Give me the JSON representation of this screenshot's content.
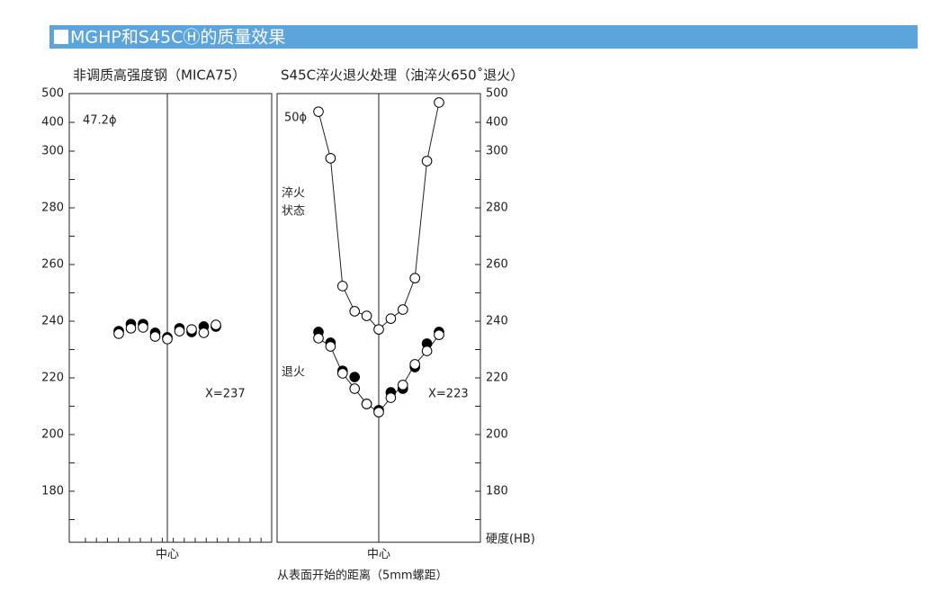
{
  "header": {
    "title": "MGHP和S45CⒽ的质量效果"
  },
  "x_label": "从表面开始的距离（5mm螺距）",
  "chart_data": [
    {
      "type": "line",
      "title": "非调质高强度钢（MICA75）",
      "categories": [
        null,
        null,
        null,
        null,
        "中心",
        null,
        null,
        null,
        null
      ],
      "series": [
        {
          "color": "#000000",
          "line": false,
          "values": [
            236.5,
            239,
            239,
            235.9,
            234.3,
            237.5,
            236.2,
            238.1,
            238.1
          ]
        },
        {
          "color": "#ffffff",
          "line": false,
          "values": [
            235.6,
            237.5,
            237.8,
            234.6,
            233.7,
            236.5,
            237.1,
            235.9,
            238.7
          ]
        }
      ],
      "ylim": [
        162,
        500
      ],
      "yticks": [
        500,
        400,
        300,
        280,
        260,
        240,
        220,
        200,
        180
      ],
      "minor_yticks": [
        290,
        270,
        250,
        230,
        210,
        190,
        170
      ],
      "y_axis_side": "left",
      "annotations": [
        "47.2ϕ",
        "X=237"
      ]
    },
    {
      "type": "line",
      "title": "S45C淬火退火处理（油淬火650˚退火）",
      "categories": [
        null,
        null,
        null,
        null,
        null,
        "中心",
        null,
        null,
        null,
        null,
        null
      ],
      "series": [
        {
          "color": "#ffffff",
          "line": true,
          "values": [
            437,
            297.5,
            252.4,
            243.5,
            241.9,
            237.1,
            240.9,
            244.1,
            255.2,
            296.5,
            469
          ]
        },
        {
          "color": "#000000",
          "line": false,
          "values": [
            236.2,
            232.4,
            222.5,
            220.3,
            210.8,
            208.6,
            214.9,
            216.2,
            223.8,
            232.1,
            236.2
          ]
        },
        {
          "color": "#ffffff",
          "line": true,
          "values": [
            234,
            231.1,
            221.6,
            216.2,
            210.8,
            207.9,
            213,
            217.5,
            224.8,
            229.5,
            235.2
          ]
        }
      ],
      "ylim": [
        162,
        500
      ],
      "yticks": [
        500,
        400,
        300,
        280,
        260,
        240,
        220,
        200,
        180
      ],
      "minor_yticks": [
        290,
        270,
        250,
        230,
        210,
        190,
        170
      ],
      "y_axis_side": "right",
      "y_label": "硬度(HB)",
      "annotations": [
        "50ϕ",
        "淬火",
        "状态",
        "退火",
        "X=223"
      ]
    }
  ]
}
